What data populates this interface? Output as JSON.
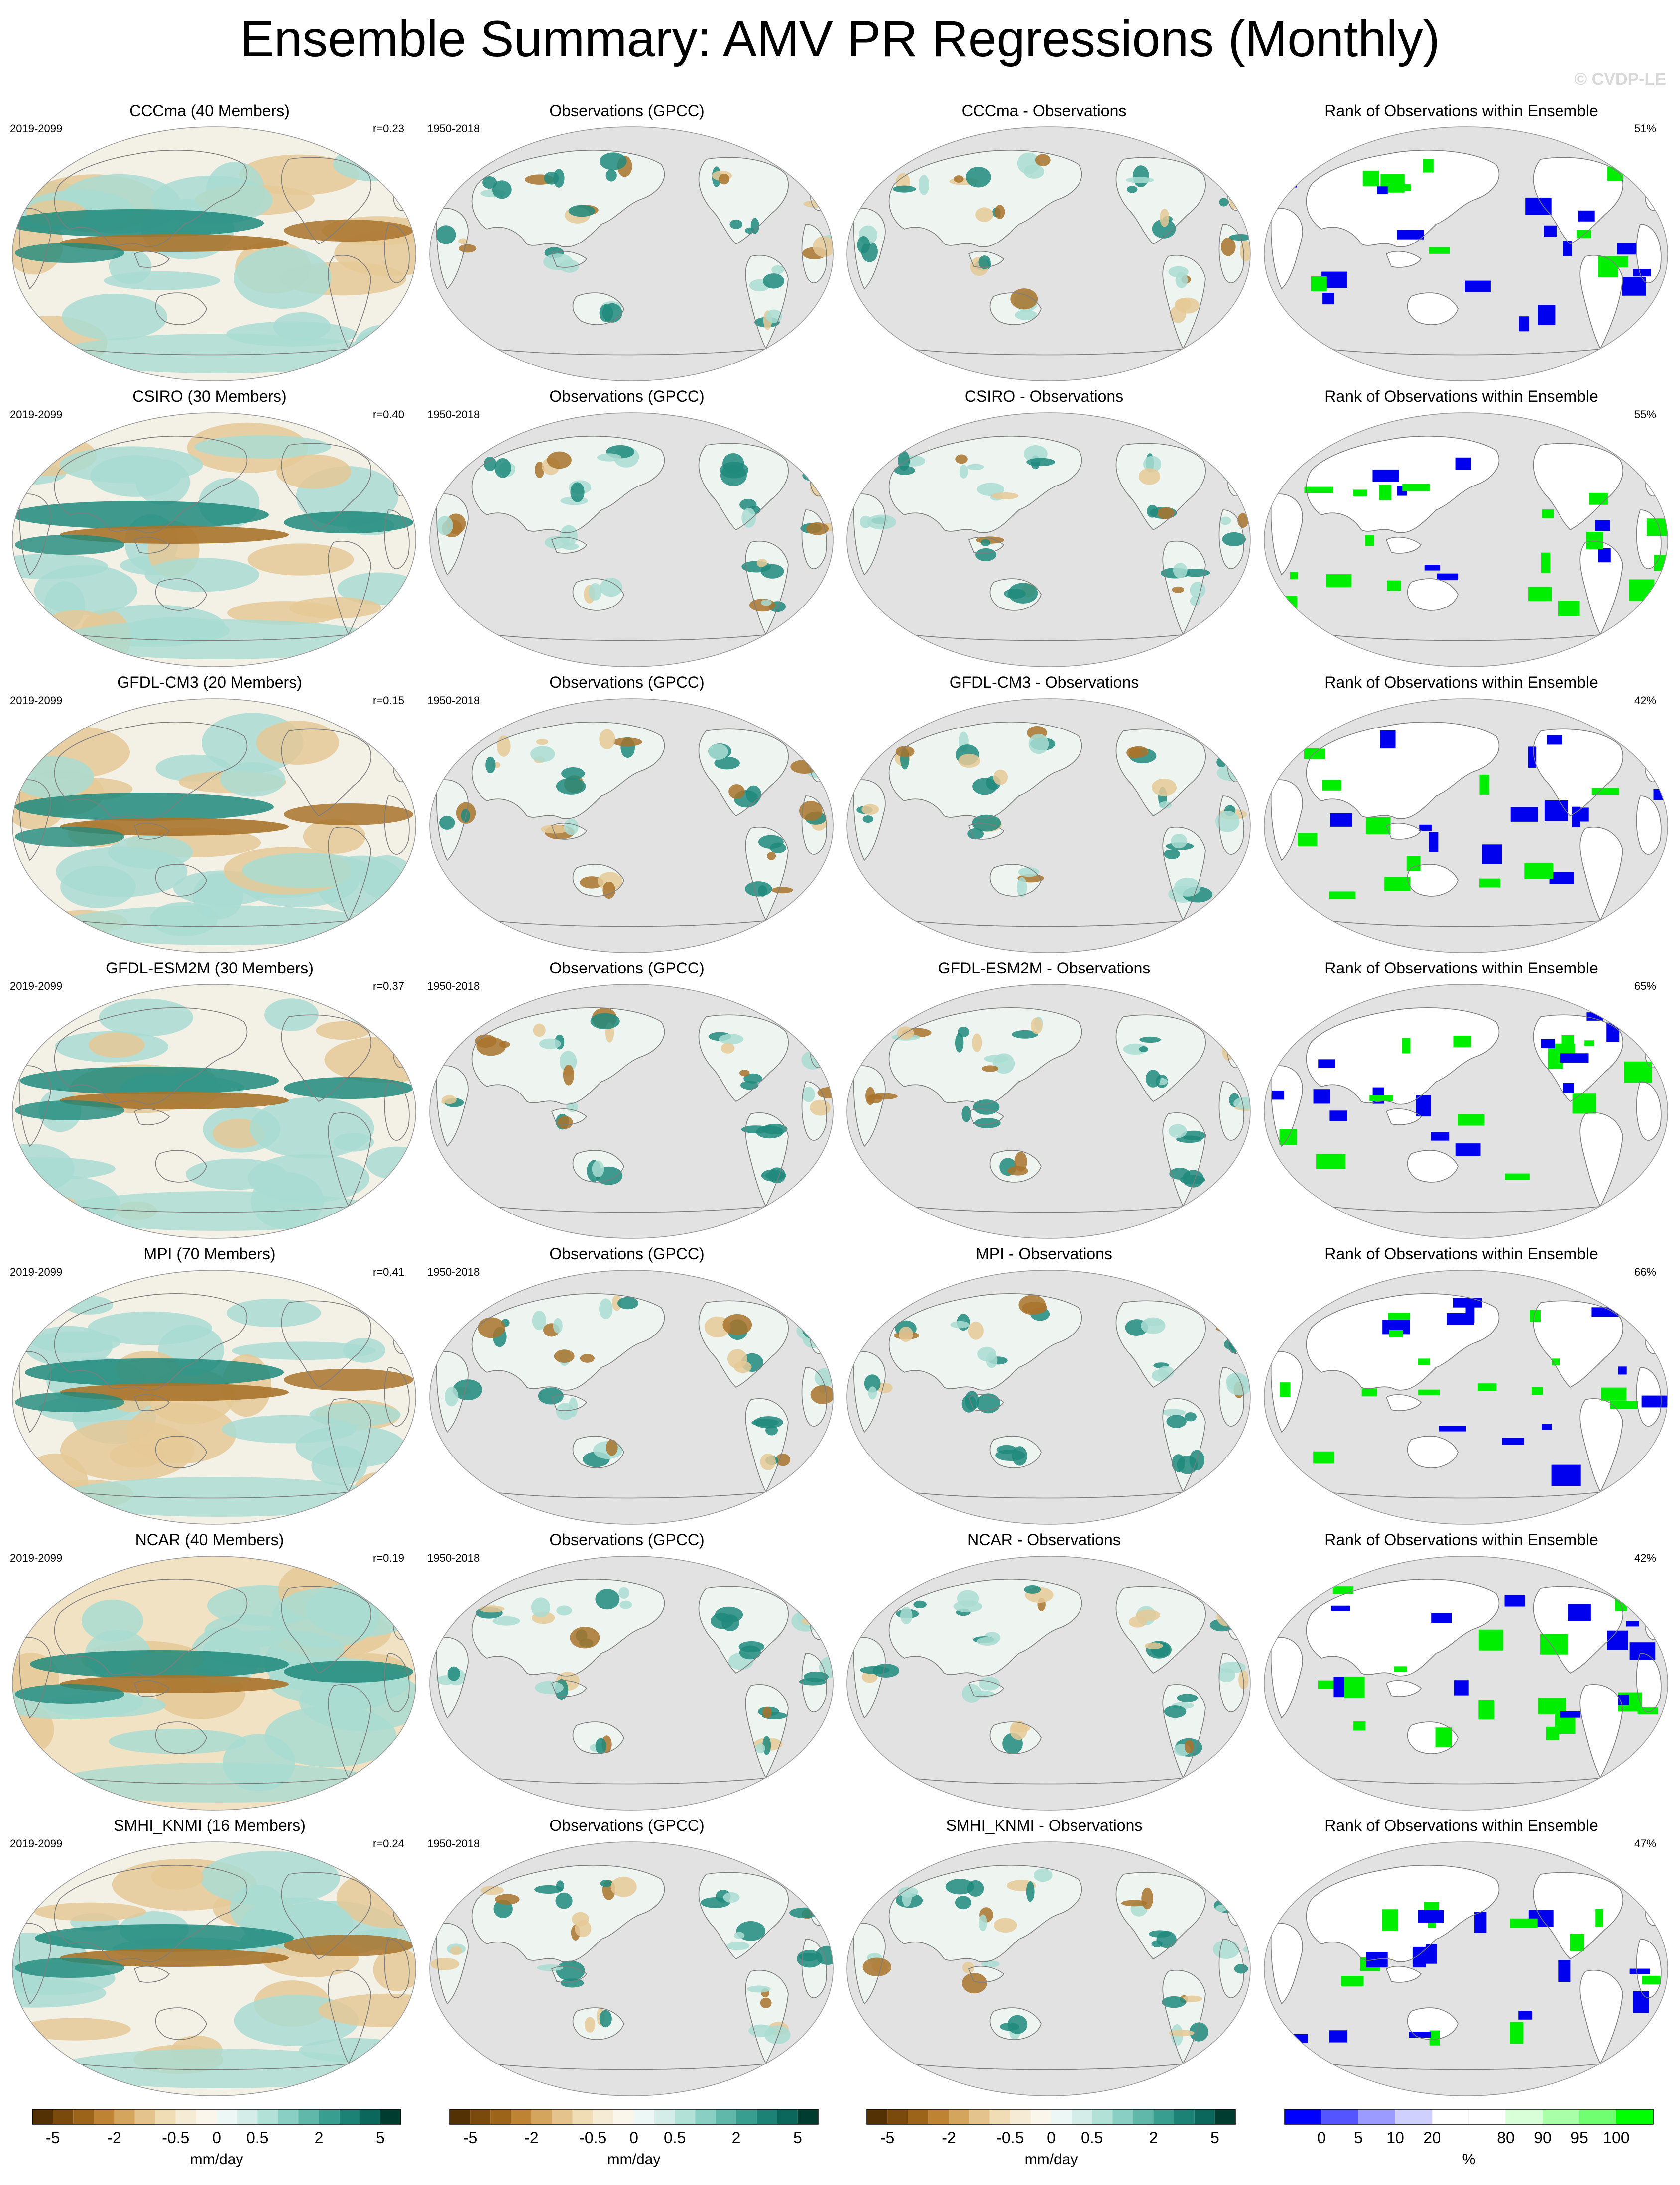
{
  "title": "Ensemble Summary: AMV PR Regressions (Monthly)",
  "credit": "© CVDP-LE",
  "rows": [
    {
      "model": "CCCma (40 Members)",
      "period": "2019-2099",
      "r": "r=0.23",
      "obs_title": "Observations (GPCC)",
      "obs_period": "1950-2018",
      "diff_title": "CCCma - Observations",
      "rank_title": "Rank of Observations within Ensemble",
      "rank_pct": "51%"
    },
    {
      "model": "CSIRO (30 Members)",
      "period": "2019-2099",
      "r": "r=0.40",
      "obs_title": "Observations (GPCC)",
      "obs_period": "1950-2018",
      "diff_title": "CSIRO - Observations",
      "rank_title": "Rank of Observations within Ensemble",
      "rank_pct": "55%"
    },
    {
      "model": "GFDL-CM3 (20 Members)",
      "period": "2019-2099",
      "r": "r=0.15",
      "obs_title": "Observations (GPCC)",
      "obs_period": "1950-2018",
      "diff_title": "GFDL-CM3 - Observations",
      "rank_title": "Rank of Observations within Ensemble",
      "rank_pct": "42%"
    },
    {
      "model": "GFDL-ESM2M (30 Members)",
      "period": "2019-2099",
      "r": "r=0.37",
      "obs_title": "Observations (GPCC)",
      "obs_period": "1950-2018",
      "diff_title": "GFDL-ESM2M - Observations",
      "rank_title": "Rank of Observations within Ensemble",
      "rank_pct": "65%"
    },
    {
      "model": "MPI (70 Members)",
      "period": "2019-2099",
      "r": "r=0.41",
      "obs_title": "Observations (GPCC)",
      "obs_period": "1950-2018",
      "diff_title": "MPI - Observations",
      "rank_title": "Rank of Observations within Ensemble",
      "rank_pct": "66%"
    },
    {
      "model": "NCAR (40 Members)",
      "period": "2019-2099",
      "r": "r=0.19",
      "obs_title": "Observations (GPCC)",
      "obs_period": "1950-2018",
      "diff_title": "NCAR - Observations",
      "rank_title": "Rank of Observations within Ensemble",
      "rank_pct": "42%"
    },
    {
      "model": "SMHI_KNMI (16 Members)",
      "period": "2019-2099",
      "r": "r=0.24",
      "obs_title": "Observations (GPCC)",
      "obs_period": "1950-2018",
      "diff_title": "SMHI_KNMI - Observations",
      "rank_title": "Rank of Observations within Ensemble",
      "rank_pct": "47%"
    }
  ],
  "colorbars": {
    "pr": {
      "unit": "mm/day",
      "tick_labels": [
        "-5",
        "-2",
        "-0.5",
        "0",
        "0.5",
        "2",
        "5"
      ],
      "colors": [
        "#543005",
        "#7a4a0c",
        "#9c6419",
        "#bf8433",
        "#d4a55c",
        "#e4c48c",
        "#f0dcb5",
        "#f6ecd6",
        "#fbf6ec",
        "#edf7f5",
        "#d4ede8",
        "#b2e1d8",
        "#8acfc3",
        "#5fb8aa",
        "#389e8f",
        "#1b8275",
        "#0b665b",
        "#003c30"
      ]
    },
    "rank": {
      "unit": "%",
      "tick_labels": [
        "0",
        "5",
        "10",
        "20",
        "80",
        "90",
        "95",
        "100"
      ],
      "colors": [
        "#0000ff",
        "#5555ff",
        "#9a9aff",
        "#d0d0ff",
        "#ffffff",
        "#ffffff",
        "#d8ffd8",
        "#a8ffa8",
        "#70ff70",
        "#00ff00"
      ]
    }
  },
  "map_colors": {
    "brown": "#a8732b",
    "lightbrown": "#e5c996",
    "teal": "#1f8a7c",
    "lightteal": "#a9dcd2",
    "ocean_missing": "#e2e2e2",
    "rank_low": "#0000ee",
    "rank_high": "#00ee00"
  }
}
